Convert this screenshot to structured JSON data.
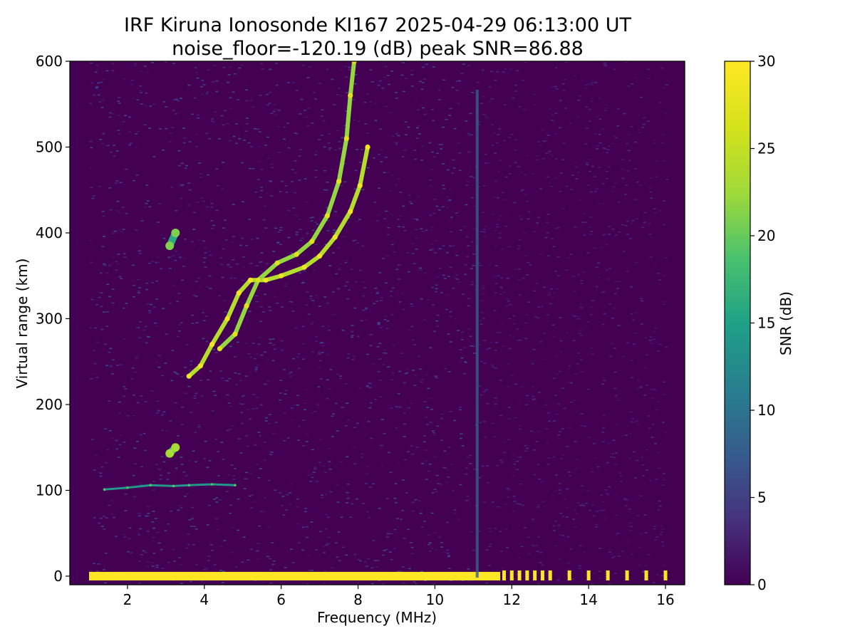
{
  "chart_data": {
    "type": "heatmap",
    "title": "IRF Kiruna Ionosonde KI167 2025-04-29 06:13:00  UT",
    "subtitle": "noise_floor=-120.19 (dB) peak SNR=86.88",
    "xlabel": "Frequency (MHz)",
    "ylabel": "Virtual range (km)",
    "xlim": [
      0.5,
      16.5
    ],
    "ylim": [
      -10,
      600
    ],
    "x_ticks": [
      2,
      4,
      6,
      8,
      10,
      12,
      14,
      16
    ],
    "y_ticks": [
      0,
      100,
      200,
      300,
      400,
      500,
      600
    ],
    "colorbar": {
      "label": "SNR (dB)",
      "range": [
        0,
        30
      ],
      "ticks": [
        0,
        5,
        10,
        15,
        20,
        25,
        30
      ],
      "colormap": "viridis"
    },
    "data_frequency_range_mhz": [
      1.0,
      16.0
    ],
    "traces": [
      {
        "kind": "ground-echo",
        "snr": 30,
        "range_km": [
          0,
          5
        ],
        "points": [
          [
            1.0,
            2
          ],
          [
            11.7,
            2
          ]
        ]
      },
      {
        "kind": "stepped-ground-echo",
        "snr": 30,
        "range_km": [
          0,
          5
        ],
        "frequencies": [
          11.8,
          12.0,
          12.2,
          12.4,
          12.6,
          12.8,
          13.0,
          13.5,
          14.0,
          14.5,
          15.0,
          15.5,
          16.0
        ]
      },
      {
        "kind": "E-layer",
        "snr": 14,
        "points": [
          [
            1.4,
            101
          ],
          [
            2.0,
            103
          ],
          [
            2.6,
            106
          ],
          [
            3.2,
            105
          ],
          [
            3.6,
            106
          ],
          [
            4.2,
            107
          ],
          [
            4.8,
            106
          ]
        ]
      },
      {
        "kind": "patch",
        "snr": 18,
        "points": [
          [
            3.1,
            143
          ],
          [
            3.25,
            150
          ]
        ]
      },
      {
        "kind": "patch",
        "snr": 16,
        "points": [
          [
            3.1,
            385
          ],
          [
            3.25,
            400
          ]
        ]
      },
      {
        "kind": "F-layer-o",
        "snr": 24,
        "points": [
          [
            3.6,
            233
          ],
          [
            3.9,
            245
          ],
          [
            4.2,
            270
          ],
          [
            4.6,
            300
          ],
          [
            4.9,
            330
          ],
          [
            5.2,
            345
          ],
          [
            5.6,
            345
          ],
          [
            6.0,
            350
          ],
          [
            6.6,
            360
          ],
          [
            7.0,
            373
          ],
          [
            7.4,
            395
          ],
          [
            7.8,
            425
          ],
          [
            8.05,
            455
          ],
          [
            8.25,
            500
          ]
        ]
      },
      {
        "kind": "F-layer-x",
        "snr": 22,
        "points": [
          [
            4.4,
            265
          ],
          [
            4.8,
            282
          ],
          [
            5.1,
            315
          ],
          [
            5.4,
            345
          ],
          [
            5.9,
            365
          ],
          [
            6.4,
            375
          ],
          [
            6.8,
            390
          ],
          [
            7.2,
            420
          ],
          [
            7.5,
            460
          ],
          [
            7.7,
            510
          ],
          [
            7.8,
            560
          ],
          [
            7.9,
            600
          ]
        ]
      },
      {
        "kind": "vertical-interference",
        "snr": 8,
        "frequency_mhz": 11.1
      }
    ]
  }
}
